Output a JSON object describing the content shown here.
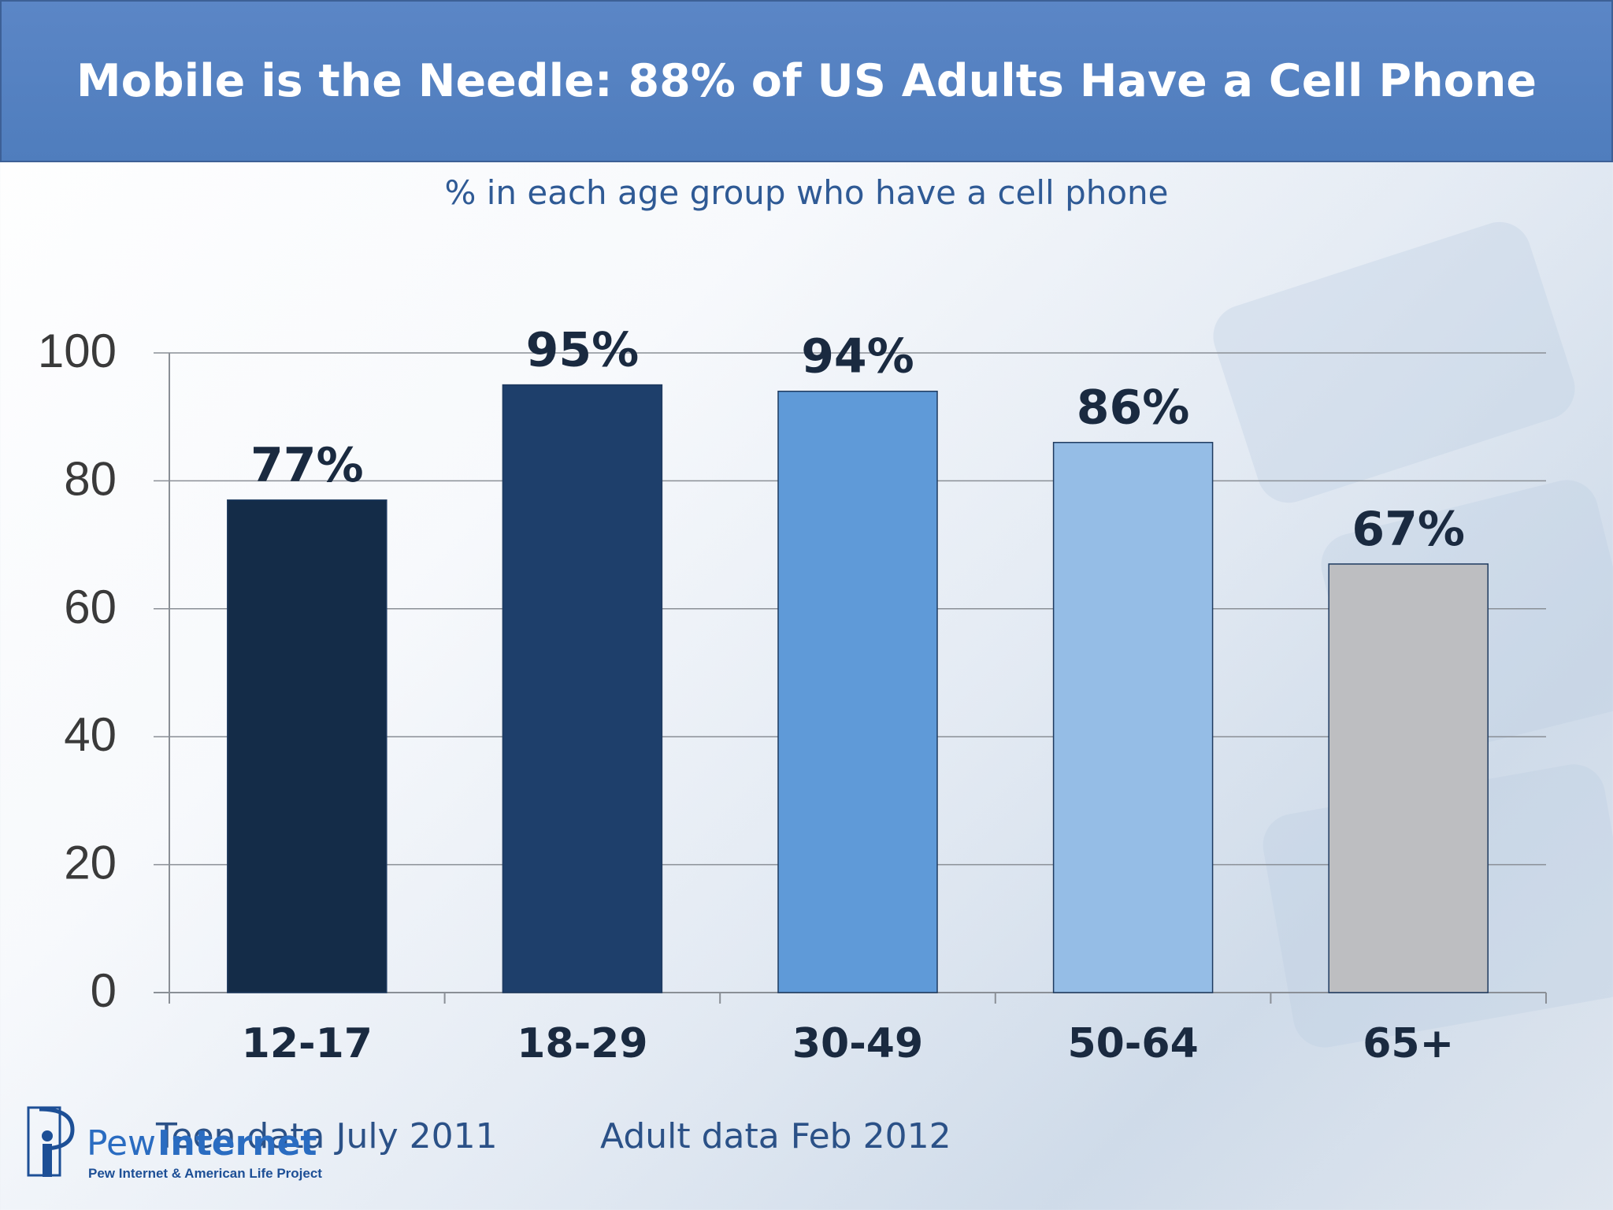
{
  "header": {
    "title": "Mobile is the Needle: 88% of US Adults Have a Cell Phone"
  },
  "chart_data": {
    "type": "bar",
    "title": "Mobile is the Needle: 88% of US Adults Have a Cell Phone",
    "subtitle": "% in each age group who have a cell phone",
    "categories": [
      "12-17",
      "18-29",
      "30-49",
      "50-64",
      "65+"
    ],
    "values": [
      77,
      95,
      94,
      86,
      67
    ],
    "data_labels": [
      "77%",
      "95%",
      "94%",
      "86%",
      "67%"
    ],
    "bar_colors": [
      "#142c48",
      "#1e3f6b",
      "#5f9ad8",
      "#95bde6",
      "#bdbec1"
    ],
    "yticks": [
      "0",
      "20",
      "40",
      "60",
      "80",
      "100"
    ],
    "ylim": [
      0,
      100
    ],
    "grid": true,
    "legend": "none"
  },
  "footer": {
    "teen_note": "Teen data July 2011",
    "adult_note": "Adult data Feb 2012"
  },
  "logo": {
    "word1": "Pew",
    "word2": "Internet",
    "subtitle": "Pew Internet & American Life Project"
  }
}
